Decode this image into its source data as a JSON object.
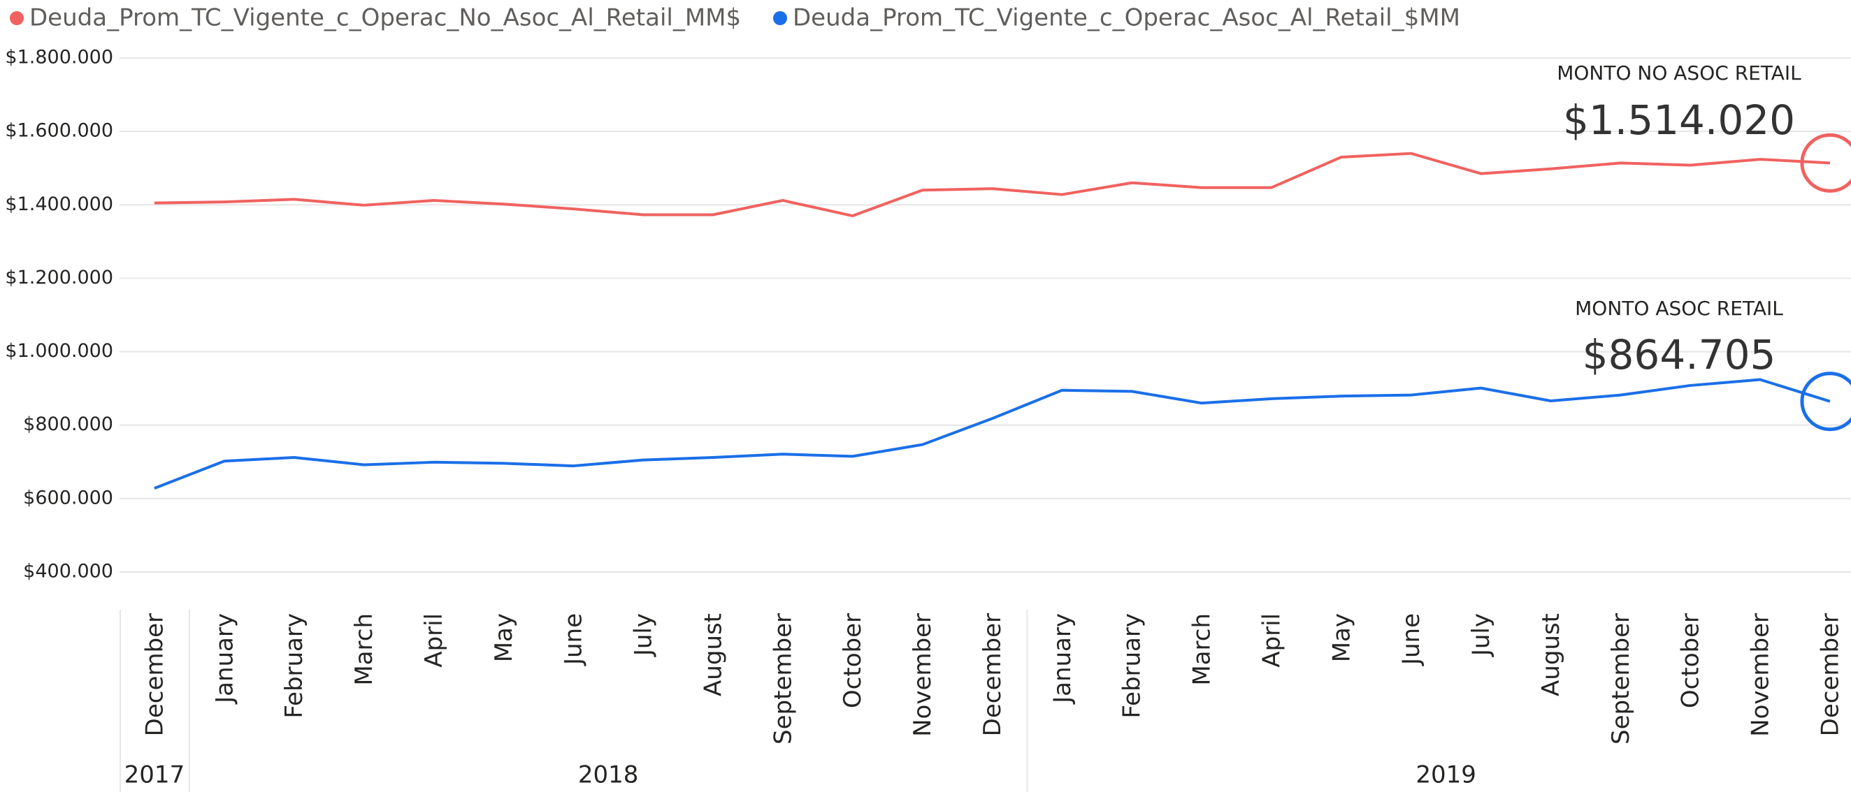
{
  "chart_data": {
    "type": "line",
    "categories": [
      "December",
      "January",
      "February",
      "March",
      "April",
      "May",
      "June",
      "July",
      "August",
      "September",
      "October",
      "November",
      "December",
      "January",
      "February",
      "March",
      "April",
      "May",
      "June",
      "July",
      "August",
      "September",
      "October",
      "November",
      "December"
    ],
    "year_groups": [
      {
        "label": "2017",
        "count": 1
      },
      {
        "label": "2018",
        "count": 12
      },
      {
        "label": "2019",
        "count": 12
      }
    ],
    "series": [
      {
        "name": "Deuda_Prom_TC_Vigente_c_Operac_No_Asoc_Al_Retail_MM$",
        "color": "#f0625f",
        "values": [
          1405000,
          1408000,
          1415000,
          1399000,
          1412000,
          1402000,
          1389000,
          1373000,
          1373000,
          1412000,
          1370000,
          1440000,
          1444000,
          1428000,
          1460000,
          1447000,
          1447000,
          1530000,
          1540000,
          1485000,
          1498000,
          1514000,
          1508000,
          1524000,
          1514020
        ]
      },
      {
        "name": "Deuda_Prom_TC_Vigente_c_Operac_Asoc_Al_Retail_$MM",
        "color": "#1a6fe8",
        "values": [
          628000,
          702000,
          712000,
          692000,
          699000,
          696000,
          689000,
          705000,
          712000,
          721000,
          715000,
          747000,
          818000,
          895000,
          892000,
          860000,
          872000,
          879000,
          882000,
          901000,
          866000,
          882000,
          908000,
          924000,
          864705
        ]
      }
    ],
    "annotations": [
      {
        "title": "MONTO NO ASOC RETAIL",
        "value_label": "$1.514.020"
      },
      {
        "title": "MONTO ASOC RETAIL",
        "value_label": "$864.705"
      }
    ],
    "ylim": [
      400000,
      1800000
    ],
    "yticks": [
      {
        "value": 400000,
        "label": "$400.000"
      },
      {
        "value": 600000,
        "label": "$600.000"
      },
      {
        "value": 800000,
        "label": "$800.000"
      },
      {
        "value": 1000000,
        "label": "$1.000.000"
      },
      {
        "value": 1200000,
        "label": "$1.200.000"
      },
      {
        "value": 1400000,
        "label": "$1.400.000"
      },
      {
        "value": 1600000,
        "label": "$1.600.000"
      },
      {
        "value": 1800000,
        "label": "$1.800.000"
      }
    ],
    "grid": true
  }
}
